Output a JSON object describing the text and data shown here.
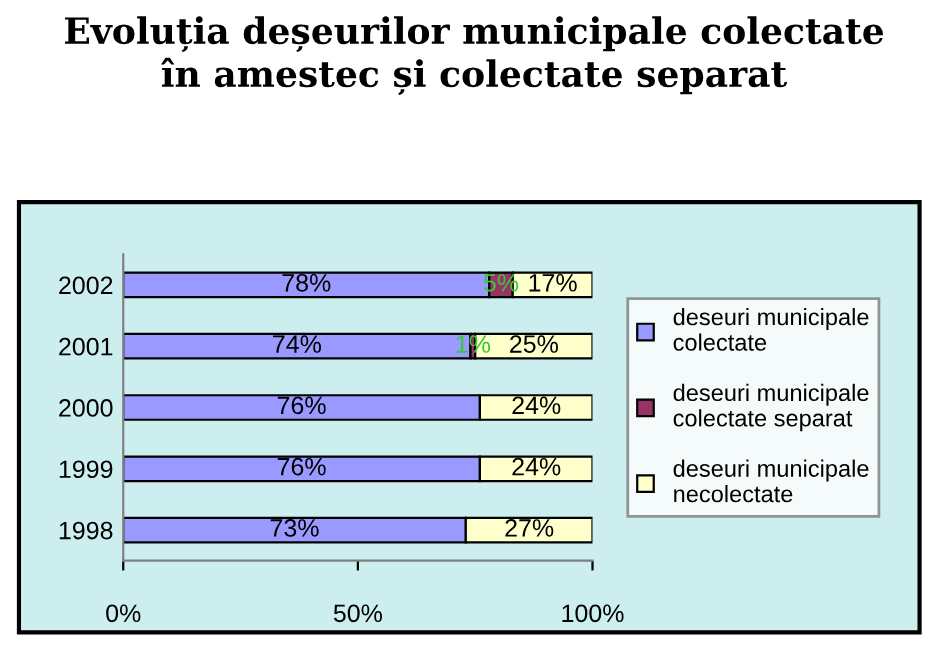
{
  "chart_data": {
    "type": "bar",
    "orientation": "horizontal",
    "stacked": true,
    "title": "Evoluția deșeurilor municipale colectate\nîn amestec și colectate separat",
    "categories": [
      "2002",
      "2001",
      "2000",
      "1999",
      "1998"
    ],
    "series": [
      {
        "name": "deseuri municipale\ncolectate",
        "color": "#9999ff",
        "values": [
          78,
          74,
          76,
          76,
          73
        ],
        "value_labels": [
          "78%",
          "74%",
          "76%",
          "76%",
          "73%"
        ]
      },
      {
        "name": "deseuri municipale\ncolectate separat",
        "color": "#993366",
        "values": [
          5,
          1,
          null,
          null,
          null
        ],
        "value_labels": [
          "5%",
          "1%",
          null,
          null,
          null
        ]
      },
      {
        "name": "deseuri municipale\nnecolectate",
        "color": "#ffffcc",
        "values": [
          17,
          25,
          24,
          24,
          27
        ],
        "value_labels": [
          "17%",
          "25%",
          "24%",
          "24%",
          "27%"
        ]
      }
    ],
    "xlim": [
      0,
      100
    ],
    "xticks": [
      {
        "value": 0,
        "label": "0%"
      },
      {
        "value": 50,
        "label": "50%"
      },
      {
        "value": 100,
        "label": "100%"
      }
    ],
    "grid": false,
    "legend": "right"
  }
}
